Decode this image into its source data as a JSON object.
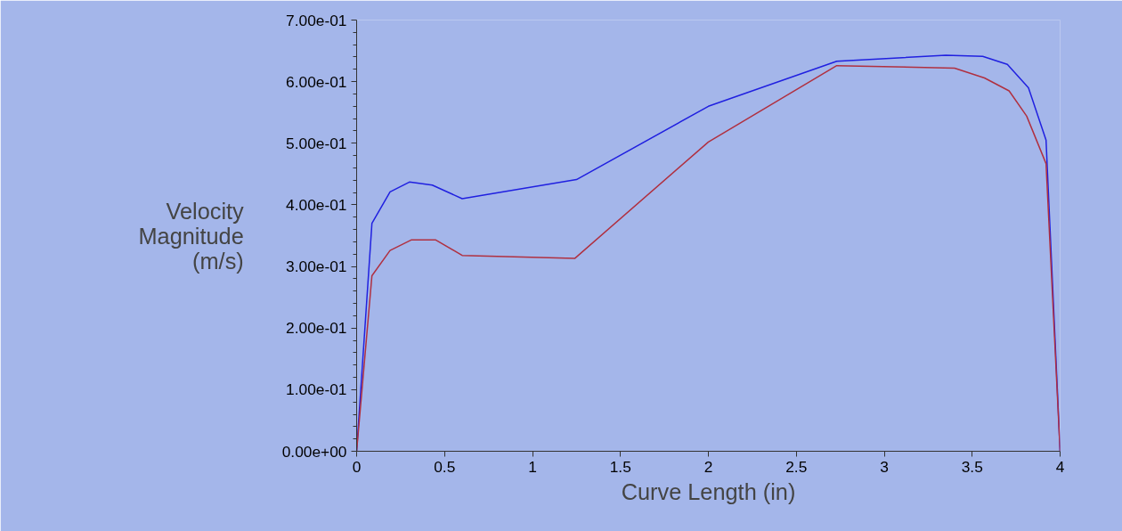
{
  "chart_data": {
    "type": "line",
    "xlabel": "Curve Length (in)",
    "ylabel": "Velocity\nMagnitude\n(m/s)",
    "xlim": [
      0,
      4
    ],
    "xticks": [
      0,
      0.5,
      1,
      1.5,
      2,
      2.5,
      3,
      3.5,
      4
    ],
    "ylim": [
      0,
      0.7
    ],
    "yticks": [
      {
        "value": 0,
        "label": "0.00e+00"
      },
      {
        "value": 0.1,
        "label": "1.00e-01"
      },
      {
        "value": 0.2,
        "label": "2.00e-01"
      },
      {
        "value": 0.3,
        "label": "3.00e-01"
      },
      {
        "value": 0.4,
        "label": "4.00e-01"
      },
      {
        "value": 0.5,
        "label": "5.00e-01"
      },
      {
        "value": 0.6,
        "label": "6.00e-01"
      },
      {
        "value": 0.7,
        "label": "7.00e-01"
      }
    ],
    "grid": false,
    "marker": "none",
    "line_style": "solid",
    "series": [
      {
        "color": "#2020e0",
        "x": [
          0,
          0.087,
          0.19,
          0.3,
          0.43,
          0.6,
          1.25,
          2.0,
          2.73,
          3.35,
          3.56,
          3.7,
          3.82,
          3.92,
          4.0
        ],
        "values": [
          0,
          0.37,
          0.421,
          0.437,
          0.432,
          0.41,
          0.441,
          0.56,
          0.633,
          0.643,
          0.641,
          0.628,
          0.59,
          0.505,
          0
        ]
      },
      {
        "color": "#b03040",
        "x": [
          0,
          0.087,
          0.19,
          0.31,
          0.45,
          0.6,
          1.24,
          2.0,
          2.73,
          3.4,
          3.57,
          3.71,
          3.81,
          3.92,
          4.0
        ],
        "values": [
          0,
          0.285,
          0.326,
          0.343,
          0.343,
          0.318,
          0.313,
          0.502,
          0.626,
          0.622,
          0.606,
          0.585,
          0.544,
          0.467,
          0
        ]
      }
    ]
  }
}
